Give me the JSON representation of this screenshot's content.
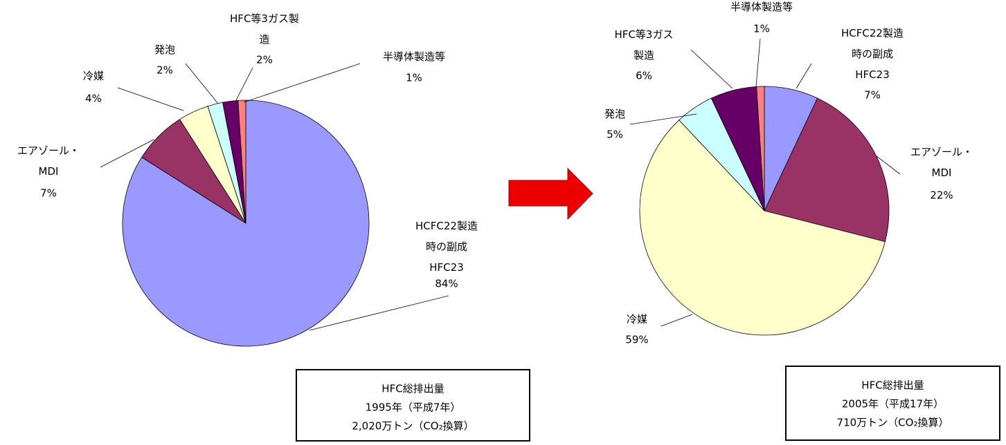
{
  "chart_data": [
    {
      "type": "pie",
      "categories": [
        "HCFC22製造\n時の副成\nHFC23",
        "エアゾール・\nMDI",
        "冷媒",
        "発泡",
        "HFC等3ガス製\n造",
        "半導体製造等"
      ],
      "values": [
        84,
        7,
        4,
        2,
        2,
        1
      ],
      "value_labels": [
        "84%",
        "7%",
        "4%",
        "2%",
        "2%",
        "1%"
      ],
      "colors": [
        "#9999FF",
        "#993366",
        "#FFFFCC",
        "#CCFFFF",
        "#660066",
        "#FF8080"
      ],
      "annotations": [
        "HFC総排出量",
        "1995年（平成7年）",
        "2,020万トン（CO₂換算）"
      ]
    },
    {
      "type": "pie",
      "categories": [
        "HCFC22製造\n時の副成\nHFC23",
        "エアゾール・\nMDI",
        "冷媒",
        "発泡",
        "HFC等3ガス\n製造",
        "半導体製造等"
      ],
      "values": [
        7,
        22,
        59,
        5,
        6,
        1
      ],
      "value_labels": [
        "7%",
        "22%",
        "59%",
        "5%",
        "6%",
        "1%"
      ],
      "colors": [
        "#9999FF",
        "#993366",
        "#FFFFCC",
        "#CCFFFF",
        "#660066",
        "#FF8080"
      ],
      "annotations": [
        "HFC総排出量",
        "2005年（平成17年）",
        "710万トン（CO₂換算）"
      ]
    }
  ]
}
